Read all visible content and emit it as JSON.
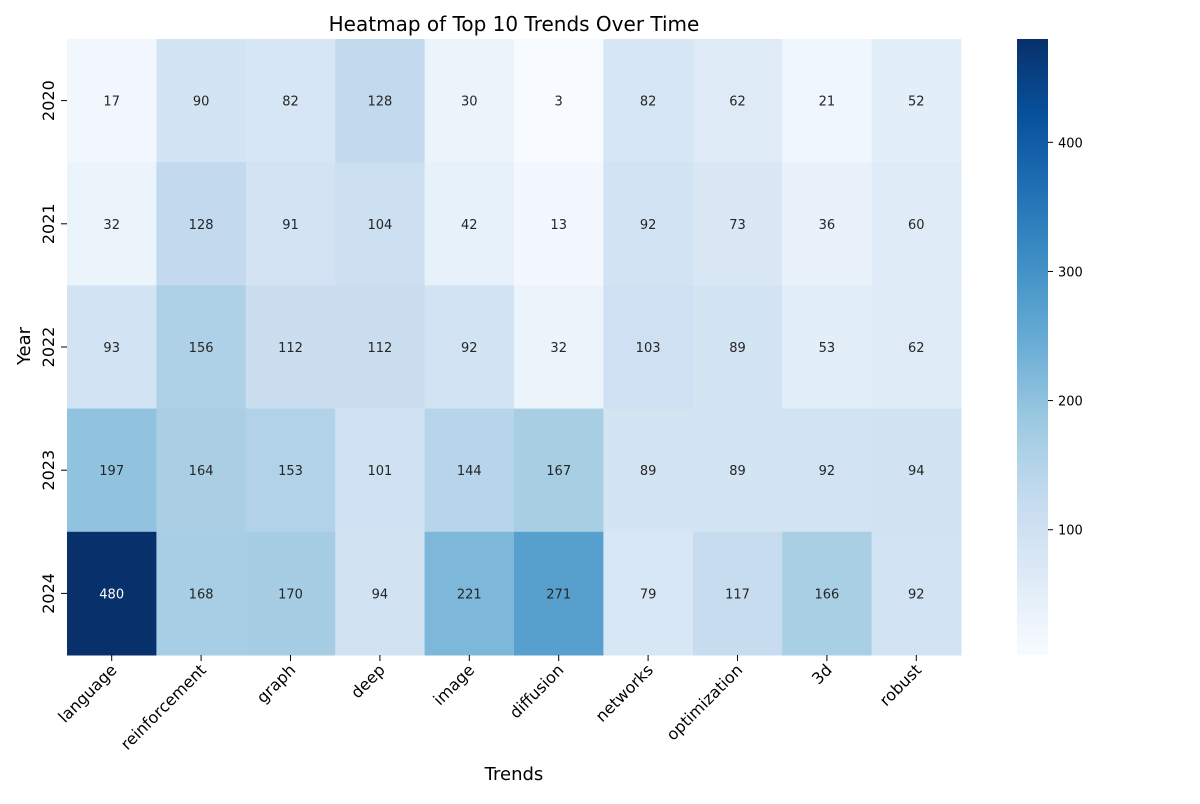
{
  "chart_data": {
    "type": "heatmap",
    "title": "Heatmap of Top 10 Trends Over Time",
    "xlabel": "Trends",
    "ylabel": "Year",
    "x_categories": [
      "language",
      "reinforcement",
      "graph",
      "deep",
      "image",
      "diffusion",
      "networks",
      "optimization",
      "3d",
      "robust"
    ],
    "y_categories": [
      "2020",
      "2021",
      "2022",
      "2023",
      "2024"
    ],
    "values": [
      [
        17,
        90,
        82,
        128,
        30,
        3,
        82,
        62,
        21,
        52
      ],
      [
        32,
        128,
        91,
        104,
        42,
        13,
        92,
        73,
        36,
        60
      ],
      [
        93,
        156,
        112,
        112,
        92,
        32,
        103,
        89,
        53,
        62
      ],
      [
        197,
        164,
        153,
        101,
        144,
        167,
        89,
        89,
        92,
        94
      ],
      [
        480,
        168,
        170,
        94,
        221,
        271,
        79,
        117,
        166,
        92
      ]
    ],
    "colormap": "Blues",
    "vmin": 3,
    "vmax": 480,
    "colorbar_ticks": [
      100,
      200,
      300,
      400
    ],
    "annotated": true,
    "grid": false
  }
}
